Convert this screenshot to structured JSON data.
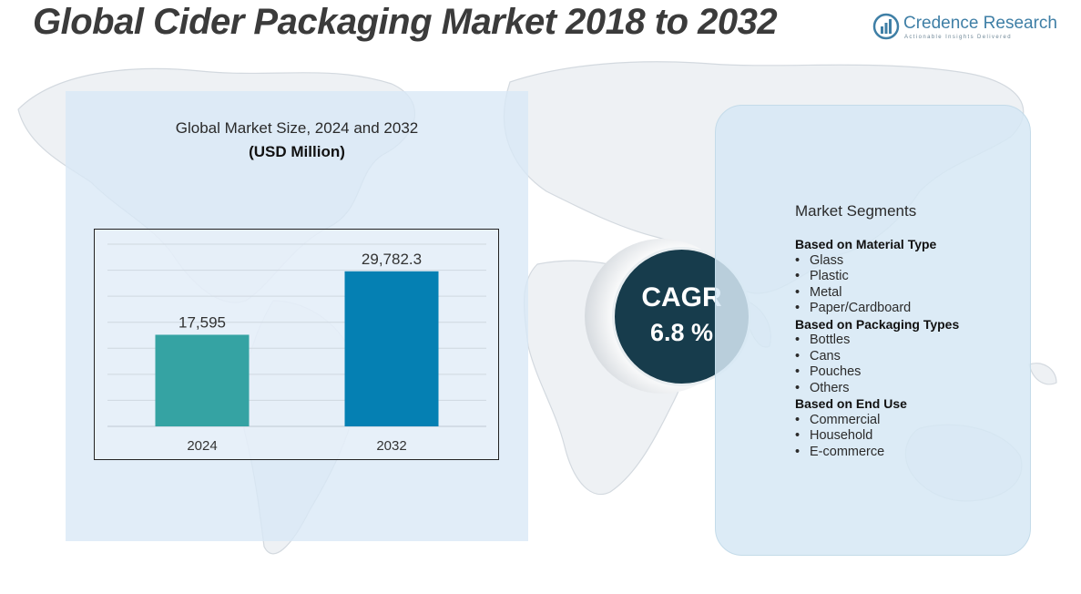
{
  "title": "Global Cider Packaging Market 2018 to 2032",
  "brand": {
    "name": "Credence Research",
    "tagline": "Actionable Insights Delivered"
  },
  "chart_panel": {
    "title": "Global Market Size, 2024 and 2032",
    "unit": "(USD Million)"
  },
  "chart_data": {
    "type": "bar",
    "title": "Global Market Size, 2024 and 2032",
    "ylabel": "USD Million",
    "xlabel": "",
    "categories": [
      "2024",
      "2032"
    ],
    "values": [
      17595,
      29782.3
    ],
    "value_labels": [
      "17,595",
      "29,782.3"
    ],
    "ylim": [
      0,
      35000
    ],
    "grid": true,
    "colors": [
      "#35a3a3",
      "#0580b3"
    ]
  },
  "cagr": {
    "label": "CAGR",
    "value": "6.8 %"
  },
  "segments": {
    "heading": "Market Segments",
    "groups": [
      {
        "title": "Based on Material Type",
        "items": [
          "Glass",
          "Plastic",
          "Metal",
          "Paper/Cardboard"
        ]
      },
      {
        "title": "Based on Packaging Types",
        "items": [
          "Bottles",
          "Cans",
          "Pouches",
          "Others"
        ]
      },
      {
        "title": "Based on End Use",
        "items": [
          "Commercial",
          "Household",
          "E-commerce"
        ]
      }
    ]
  },
  "colors": {
    "title_text": "#3b3b3b",
    "cagr_circle": "#173c4c",
    "brand_blue": "#3f7fa6",
    "panel_bg": "#d9e8f6"
  }
}
